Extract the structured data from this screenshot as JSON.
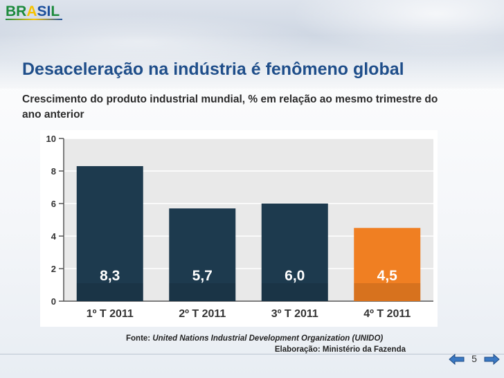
{
  "logo": {
    "text": "BRASIL"
  },
  "title": "Desaceleração na indústria é fenômeno global",
  "subtitle": "Crescimento do produto industrial mundial, % em relação ao mesmo trimestre do ano anterior",
  "source": {
    "label": "Fonte:",
    "organization": "United Nations Industrial Development Organization (UNIDO)",
    "elaboration": "Elaboração: Ministério da Fazenda"
  },
  "page_number": "5",
  "colors": {
    "title": "#1f4e8a",
    "bar_dark": "#1d3a4e",
    "bar_highlight": "#f07f22",
    "plot_background": "#e9e9e9"
  },
  "icons": {
    "prev": "left-arrow-icon",
    "next": "right-arrow-icon"
  },
  "chart_data": {
    "type": "bar",
    "categories": [
      "1º T 2011",
      "2º T 2011",
      "3º T 2011",
      "4º T 2011"
    ],
    "values": [
      8.3,
      5.7,
      6.0,
      4.5
    ],
    "value_labels": [
      "8,3",
      "5,7",
      "6,0",
      "4,5"
    ],
    "highlight_index": 3,
    "ylim": [
      0,
      10
    ],
    "yticks": [
      0,
      2,
      4,
      6,
      8,
      10
    ],
    "grid": true,
    "title": "",
    "xlabel": "",
    "ylabel": ""
  }
}
